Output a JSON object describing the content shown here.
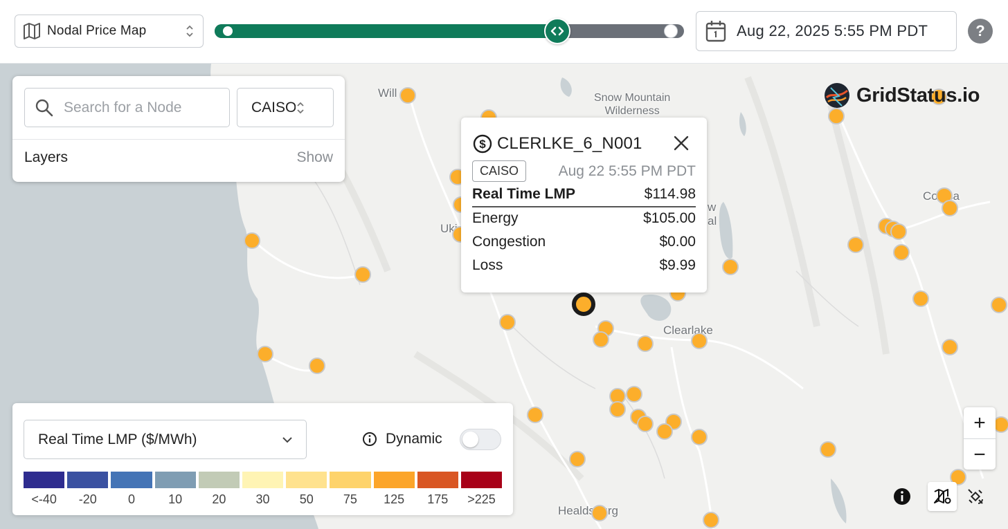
{
  "header": {
    "map_type_label": "Nodal Price Map",
    "map_type_icon": "map-icon",
    "timeline_progress": 0.73,
    "date_label": "Aug 22, 2025 5:55 PM PDT",
    "help_label": "?"
  },
  "brand": {
    "name": "GridStatus.io"
  },
  "search_panel": {
    "search_placeholder": "Search for a Node",
    "iso_value": "CAISO",
    "layers_label": "Layers",
    "show_label": "Show"
  },
  "popup": {
    "node_name": "CLERLKE_6_N001",
    "iso": "CAISO",
    "timestamp": "Aug 22 5:55 PM PDT",
    "rows": [
      {
        "label": "Real Time LMP",
        "value": "$114.98"
      },
      {
        "label": "Energy",
        "value": "$105.00"
      },
      {
        "label": "Congestion",
        "value": "$0.00"
      },
      {
        "label": "Loss",
        "value": "$9.99"
      }
    ]
  },
  "map_labels": {
    "willits": "Will",
    "snow_mountain_1": "Snow Mountain",
    "snow_mountain_2": "Wilderness",
    "ukiah": "Uki",
    "colusa": "Colusa",
    "clearlake": "Clearlake",
    "healdsburg": "Healdsburg",
    "partial_w": "w",
    "partial_al": "al"
  },
  "legend": {
    "metric_label": "Real Time LMP ($/MWh)",
    "dynamic_label": "Dynamic",
    "dynamic_on": false,
    "colors": [
      "#2e2c8f",
      "#3a51a1",
      "#4474b6",
      "#7f9db3",
      "#c2cbb6",
      "#fff4b4",
      "#ffe28e",
      "#fed36b",
      "#fca52a",
      "#d95623",
      "#a80118"
    ],
    "ticks": [
      "<-40",
      "-20",
      "0",
      "10",
      "20",
      "30",
      "50",
      "75",
      "125",
      "175",
      ">225"
    ]
  },
  "zoom": {
    "in_label": "+",
    "out_label": "−"
  },
  "colors": {
    "node_fill": "#fcae2b",
    "accent_green": "#0f7b5a"
  }
}
